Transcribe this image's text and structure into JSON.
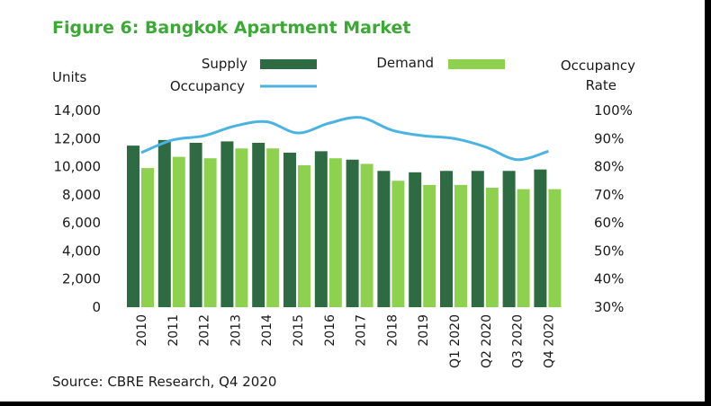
{
  "figure_title": "Figure 6: Bangkok Apartment Market",
  "source": "Source: CBRE Research, Q4 2020",
  "colors": {
    "title": "#3aaa35",
    "supply": "#2e6b43",
    "demand": "#8dd14f",
    "occupancy": "#4ab3e2",
    "frame": "#000000"
  },
  "chart_data": {
    "type": "bar",
    "title": "Figure 6: Bangkok Apartment Market",
    "categories": [
      "2010",
      "2011",
      "2012",
      "2013",
      "2014",
      "2015",
      "2016",
      "2017",
      "2018",
      "2019",
      "Q1 2020",
      "Q2 2020",
      "Q3 2020",
      "Q4 2020"
    ],
    "series": [
      {
        "name": "Supply",
        "type": "bar",
        "axis": "left",
        "values": [
          11500,
          11900,
          11700,
          11800,
          11700,
          11000,
          11100,
          10500,
          9700,
          9600,
          9700,
          9700,
          9700,
          9800
        ]
      },
      {
        "name": "Demand",
        "type": "bar",
        "axis": "left",
        "values": [
          9900,
          10700,
          10600,
          11300,
          11300,
          10100,
          10600,
          10200,
          9000,
          8700,
          8700,
          8500,
          8400,
          8400
        ]
      },
      {
        "name": "Occupancy",
        "type": "line",
        "axis": "right",
        "values": [
          85,
          89.5,
          91,
          94.5,
          96,
          92,
          95.5,
          97.5,
          93,
          91,
          90,
          87,
          82.5,
          85.5
        ]
      }
    ],
    "left_axis": {
      "label": "Units",
      "ylim": [
        0,
        14000
      ],
      "ticks": [
        "0",
        "2,000",
        "4,000",
        "6,000",
        "8,000",
        "10,000",
        "12,000",
        "14,000"
      ]
    },
    "right_axis": {
      "label_line1": "Occupancy",
      "label_line2": "Rate",
      "ylim": [
        30,
        100
      ],
      "ticks": [
        "30%",
        "40%",
        "50%",
        "60%",
        "70%",
        "80%",
        "90%",
        "100%"
      ]
    },
    "legend": {
      "placement": "top",
      "supply_label": "Supply",
      "demand_label": "Demand",
      "occupancy_label": "Occupancy"
    },
    "grid": false
  }
}
